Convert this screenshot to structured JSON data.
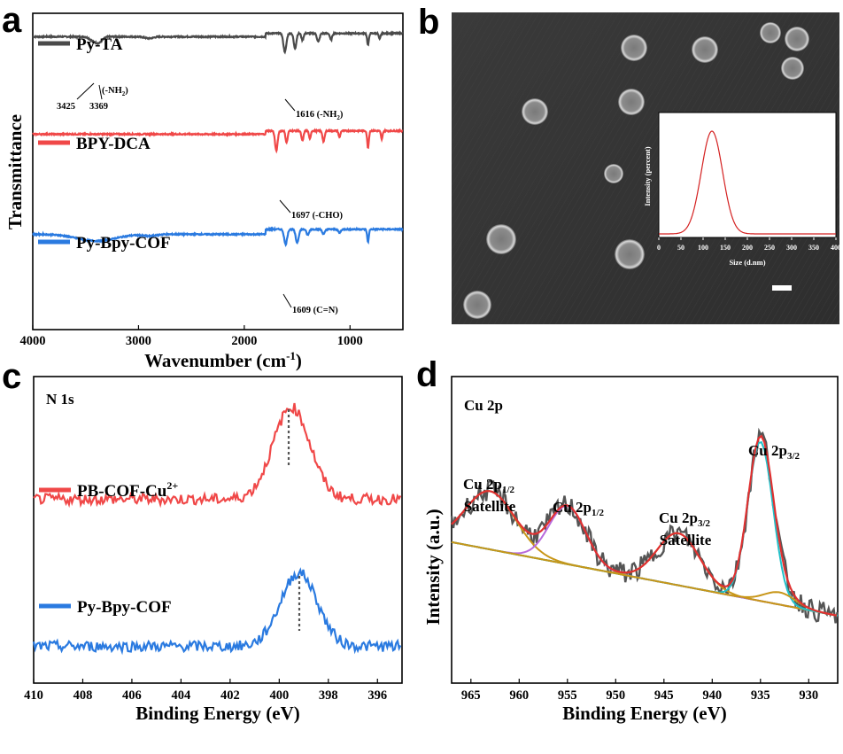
{
  "colors": {
    "dark": "#4a4a4a",
    "red": "#f04848",
    "blue": "#2a7ae0",
    "fit_red": "#e03030",
    "fit_purple": "#b86adc",
    "fit_orange": "#c89618",
    "fit_cyan": "#20c0c8",
    "inset_line": "#d42020"
  },
  "panels": {
    "a": {
      "letter": "a"
    },
    "b": {
      "letter": "b"
    },
    "c": {
      "letter": "c"
    },
    "d": {
      "letter": "d"
    }
  },
  "chart_data": [
    {
      "panel": "a",
      "type": "line",
      "xlabel_main": "Wavenumber (cm",
      "xlabel_sup": "-1",
      "xlabel_end": ")",
      "ylabel": "Transmittance",
      "xlim": [
        4000,
        500
      ],
      "xticks": [
        "4000",
        "3000",
        "2000",
        "1000"
      ],
      "xtick_values": [
        4000,
        3000,
        2000,
        1000
      ],
      "series": [
        {
          "name": "Py-TA",
          "color": "#4a4a4a",
          "baseline": 0.86,
          "dips": [
            [
              3425,
              0.05,
              35
            ],
            [
              3369,
              0.06,
              30
            ],
            [
              2900,
              0.02,
              40
            ],
            [
              1616,
              0.22,
              14
            ],
            [
              1520,
              0.18,
              12
            ],
            [
              1450,
              0.08,
              10
            ],
            [
              1300,
              0.1,
              12
            ],
            [
              1180,
              0.08,
              10
            ],
            [
              830,
              0.14,
              8
            ],
            [
              720,
              0.07,
              8
            ]
          ],
          "rise": [
            [
              1800,
              0.04
            ]
          ]
        },
        {
          "name": "BPY-DCA",
          "color": "#f04848",
          "baseline": 0.56,
          "dips": [
            [
              1697,
              0.24,
              12
            ],
            [
              1600,
              0.14,
              10
            ],
            [
              1450,
              0.12,
              10
            ],
            [
              1380,
              0.1,
              8
            ],
            [
              1250,
              0.13,
              10
            ],
            [
              1100,
              0.08,
              8
            ],
            [
              830,
              0.2,
              8
            ],
            [
              700,
              0.1,
              8
            ]
          ],
          "rise": [
            [
              1760,
              0.04
            ]
          ]
        },
        {
          "name": "Py-Bpy-COF",
          "color": "#2a7ae0",
          "baseline": 0.22,
          "dips": [
            [
              3400,
              0.08,
              180
            ],
            [
              2900,
              0.02,
              60
            ],
            [
              1609,
              0.18,
              14
            ],
            [
              1500,
              0.16,
              14
            ],
            [
              1400,
              0.07,
              12
            ],
            [
              1250,
              0.06,
              12
            ],
            [
              1100,
              0.04,
              12
            ],
            [
              830,
              0.15,
              8
            ]
          ],
          "rise": [
            [
              1800,
              0.06
            ]
          ]
        }
      ],
      "annotations": [
        {
          "text": "3425"
        },
        {
          "text": "3369"
        },
        {
          "text": "(-NH",
          "sub": "2",
          "end": ")"
        },
        {
          "text": "1616 (-NH",
          "sub": "2",
          "end": ")"
        },
        {
          "text": "1697 (-CHO)"
        },
        {
          "text": "1609 (C=N)"
        }
      ]
    },
    {
      "panel": "b-inset",
      "type": "line",
      "xlabel": "Size (d.nm)",
      "ylabel": "Intensity (percent)",
      "xlim": [
        0,
        400
      ],
      "xticks": [
        "0",
        "50",
        "100",
        "150",
        "200",
        "250",
        "300",
        "350",
        "400"
      ],
      "xtick_values": [
        0,
        50,
        100,
        150,
        200,
        250,
        300,
        350,
        400
      ],
      "series": [
        {
          "name": "",
          "peak_x": 120,
          "width": 24
        }
      ]
    },
    {
      "panel": "c",
      "type": "line",
      "title": "N 1s",
      "xlabel": "Binding Energy (eV)",
      "xlim": [
        410,
        395
      ],
      "xticks": [
        "410",
        "408",
        "406",
        "404",
        "402",
        "400",
        "398",
        "396"
      ],
      "xtick_values": [
        410,
        408,
        406,
        404,
        402,
        400,
        398,
        396
      ],
      "series": [
        {
          "name": "PB-COF-Cu",
          "sup": "2+",
          "color": "#f04848",
          "peak_center": 399.5,
          "baseline": 0.6,
          "height": 0.3
        },
        {
          "name": "Py-Bpy-COF",
          "color": "#2a7ae0",
          "peak_center": 399.2,
          "baseline": 0.12,
          "height": 0.24
        }
      ]
    },
    {
      "panel": "d",
      "type": "line",
      "title": "Cu 2p",
      "xlabel": "Binding Energy (eV)",
      "ylabel": "Intensity (a.u.)",
      "xlim": [
        967,
        927
      ],
      "xticks": [
        "965",
        "960",
        "955",
        "950",
        "945",
        "940",
        "935",
        "930"
      ],
      "xtick_values": [
        965,
        960,
        955,
        950,
        945,
        940,
        935,
        930
      ],
      "peaks": [
        {
          "label": "Cu 2p",
          "sub": "1/2",
          "line2": "Satellite",
          "center": 963.0
        },
        {
          "label": "Cu 2p",
          "sub": "1/2",
          "line2": "",
          "center": 955.0
        },
        {
          "label": "Cu 2p",
          "sub": "3/2",
          "line2": "Satellite",
          "center": 943.5
        },
        {
          "label": "Cu 2p",
          "sub": "3/2",
          "line2": "",
          "center": 935.0
        }
      ]
    }
  ]
}
